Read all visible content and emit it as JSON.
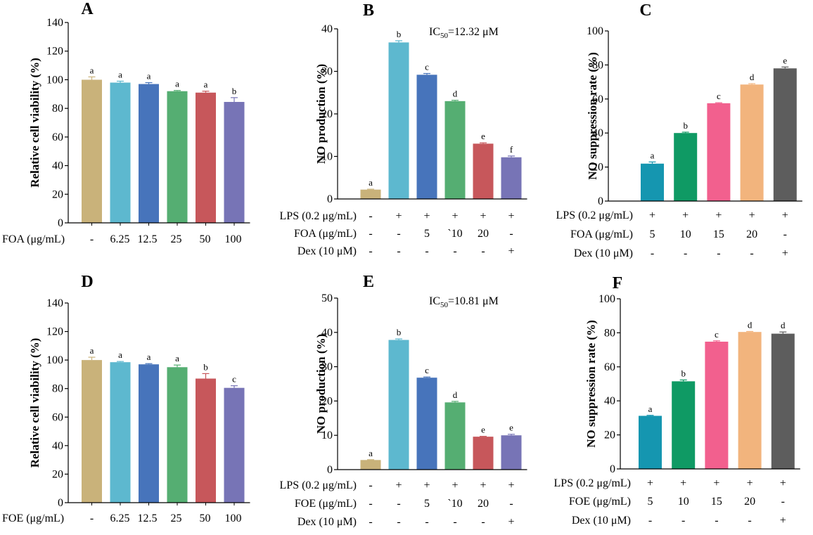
{
  "figure": {
    "colors": {
      "tan": "#C9B27A",
      "lightblue": "#5DB8CF",
      "blue": "#4774BB",
      "green": "#55AE72",
      "red": "#C7575B",
      "purple": "#7774B6",
      "teal": "#1596B0",
      "darkgreen": "#0F9A64",
      "pink": "#F2608E",
      "peach": "#F2B47D",
      "gray": "#5D5D5D"
    },
    "panels": [
      {
        "letter": "A",
        "type": "bar",
        "ylabel": "Relative cell viability (%)",
        "ylim": [
          0,
          140
        ],
        "yticks": [
          "0",
          "20",
          "40",
          "60",
          "80",
          "100",
          "120",
          "140"
        ],
        "values": [
          100,
          98,
          97,
          92,
          91,
          84.5
        ],
        "errors": [
          2,
          1,
          1,
          0.5,
          1,
          3
        ],
        "letters": [
          "a",
          "a",
          "a",
          "a",
          "a",
          "b"
        ],
        "colors": [
          "tan",
          "lightblue",
          "blue",
          "green",
          "red",
          "purple"
        ],
        "conditions": [
          {
            "label": "FOA (μg/mL)",
            "values": [
              "-",
              "6.25",
              "12.5",
              "25",
              "50",
              "100"
            ]
          }
        ]
      },
      {
        "letter": "B",
        "type": "bar",
        "ylabel": "NO production (%)",
        "ic50_prefix": "IC",
        "ic50_sub": "50",
        "ic50_value": "=12.32 μM",
        "ylim": [
          0,
          40
        ],
        "yticks": [
          "0",
          "10",
          "20",
          "30",
          "40"
        ],
        "values": [
          2.2,
          36.8,
          29.2,
          23,
          13,
          9.8
        ],
        "errors": [
          0.1,
          0.4,
          0.3,
          0.2,
          0.2,
          0.3
        ],
        "letters": [
          "a",
          "b",
          "c",
          "d",
          "e",
          "f"
        ],
        "colors": [
          "tan",
          "lightblue",
          "blue",
          "green",
          "red",
          "purple"
        ],
        "conditions": [
          {
            "label": "LPS (0.2 μg/mL)",
            "values": [
              "-",
              "+",
              "+",
              "+",
              "+",
              "+"
            ]
          },
          {
            "label": "FOA (μg/mL)",
            "values": [
              "-",
              "-",
              "5",
              "`10",
              "20",
              "-"
            ]
          },
          {
            "label": "Dex (10 μM)",
            "values": [
              "-",
              "-",
              "-",
              "-",
              "-",
              "+"
            ]
          }
        ]
      },
      {
        "letter": "C",
        "type": "bar",
        "ylabel": "NO suppression rate (%)",
        "ylim": [
          0,
          100
        ],
        "yticks": [
          "0",
          "20",
          "40",
          "60",
          "80",
          "100"
        ],
        "values": [
          22,
          40,
          57.5,
          68.5,
          78
        ],
        "errors": [
          1,
          0.5,
          0.3,
          0.5,
          0.8
        ],
        "letters": [
          "a",
          "b",
          "c",
          "d",
          "e"
        ],
        "colors": [
          "teal",
          "darkgreen",
          "pink",
          "peach",
          "gray"
        ],
        "conditions": [
          {
            "label": "LPS (0.2 μg/mL)",
            "values": [
              "+",
              "+",
              "+",
              "+",
              "+"
            ]
          },
          {
            "label": "FOA (μg/mL)",
            "values": [
              "5",
              "10",
              "15",
              "20",
              "-"
            ]
          },
          {
            "label": "Dex (10 μM)",
            "values": [
              "-",
              "-",
              "-",
              "-",
              "+"
            ]
          }
        ]
      },
      {
        "letter": "D",
        "type": "bar",
        "ylabel": "Relative cell viability (%)",
        "ylim": [
          0,
          140
        ],
        "yticks": [
          "0",
          "20",
          "40",
          "60",
          "80",
          "100",
          "120",
          "140"
        ],
        "values": [
          100,
          98.5,
          97,
          95,
          87,
          80.5
        ],
        "errors": [
          2,
          0.5,
          0.5,
          1.5,
          3.5,
          1.5
        ],
        "letters": [
          "a",
          "a",
          "a",
          "a",
          "b",
          "c"
        ],
        "colors": [
          "tan",
          "lightblue",
          "blue",
          "green",
          "red",
          "purple"
        ],
        "conditions": [
          {
            "label": "FOE (μg/mL)",
            "values": [
              "-",
              "6.25",
              "12.5",
              "25",
              "50",
              "100"
            ]
          }
        ]
      },
      {
        "letter": "E",
        "type": "bar",
        "ylabel": "NO production (%)",
        "ic50_prefix": "IC",
        "ic50_sub": "50",
        "ic50_value": "=10.81 μM",
        "ylim": [
          0,
          50
        ],
        "yticks": [
          "0",
          "10",
          "20",
          "30",
          "40",
          "50"
        ],
        "values": [
          2.8,
          37.8,
          26.8,
          19.6,
          9.6,
          10
        ],
        "errors": [
          0.1,
          0.3,
          0.2,
          0.3,
          0.1,
          0.3
        ],
        "letters": [
          "a",
          "b",
          "c",
          "d",
          "e",
          "e"
        ],
        "colors": [
          "tan",
          "lightblue",
          "blue",
          "green",
          "red",
          "purple"
        ],
        "conditions": [
          {
            "label": "LPS (0.2 μg/mL)",
            "values": [
              "-",
              "+",
              "+",
              "+",
              "+",
              "+"
            ]
          },
          {
            "label": "FOE (μg/mL)",
            "values": [
              "-",
              "-",
              "5",
              "`10",
              "20",
              "-"
            ]
          },
          {
            "label": "Dex (10 μM)",
            "values": [
              "-",
              "-",
              "-",
              "-",
              "-",
              "+"
            ]
          }
        ]
      },
      {
        "letter": "F",
        "type": "bar",
        "ylabel": "NO suppression rate (%)",
        "ylim": [
          0,
          100
        ],
        "yticks": [
          "0",
          "20",
          "40",
          "60",
          "80",
          "100"
        ],
        "values": [
          31.2,
          51.5,
          74.8,
          80.5,
          79.5
        ],
        "errors": [
          0.3,
          0.8,
          0.5,
          0.3,
          1
        ],
        "letters": [
          "a",
          "b",
          "c",
          "d",
          "d"
        ],
        "colors": [
          "teal",
          "darkgreen",
          "pink",
          "peach",
          "gray"
        ],
        "conditions": [
          {
            "label": "LPS (0.2 μg/mL)",
            "values": [
              "+",
              "+",
              "+",
              "+",
              "+"
            ]
          },
          {
            "label": "FOE (μg/mL)",
            "values": [
              "5",
              "10",
              "15",
              "20",
              "-"
            ]
          },
          {
            "label": "Dex (10 μM)",
            "values": [
              "-",
              "-",
              "-",
              "-",
              "+"
            ]
          }
        ]
      }
    ]
  }
}
